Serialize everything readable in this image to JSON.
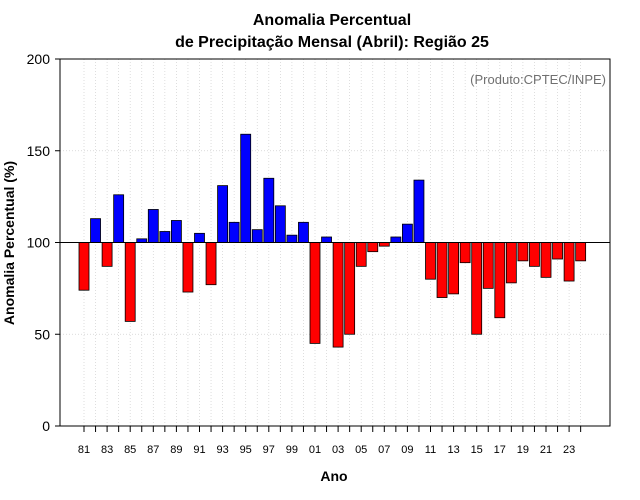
{
  "chart_data": {
    "type": "bar",
    "title": [
      "Anomalia Percentual",
      "de Precipitação Mensal (Abril): Região 25"
    ],
    "xlabel": "Ano",
    "ylabel": "Anomalia Percentual (%)",
    "credit": "(Produto:CPTEC/INPE)",
    "baseline": 100,
    "ylim": [
      0,
      200
    ],
    "yticks": [
      0,
      50,
      100,
      150,
      200
    ],
    "grid": true,
    "colors": {
      "above": "#0000ff",
      "below": "#ff0000"
    },
    "categories": [
      "81",
      "82",
      "83",
      "84",
      "85",
      "86",
      "87",
      "88",
      "89",
      "90",
      "91",
      "92",
      "93",
      "94",
      "95",
      "96",
      "97",
      "98",
      "99",
      "00",
      "01",
      "02",
      "03",
      "04",
      "05",
      "06",
      "07",
      "08",
      "09",
      "10",
      "11",
      "12",
      "13",
      "14",
      "15",
      "16",
      "17",
      "18",
      "19",
      "20",
      "21",
      "22",
      "23",
      "24"
    ],
    "xticklabels": [
      "81",
      "83",
      "85",
      "87",
      "89",
      "91",
      "93",
      "95",
      "97",
      "99",
      "01",
      "03",
      "05",
      "07",
      "09",
      "11",
      "13",
      "15",
      "17",
      "19",
      "21",
      "23"
    ],
    "values": [
      74,
      113,
      87,
      126,
      57,
      102,
      118,
      106,
      112,
      73,
      105,
      77,
      131,
      111,
      159,
      107,
      135,
      120,
      104,
      111,
      45,
      103,
      43,
      50,
      87,
      95,
      98,
      103,
      110,
      134,
      80,
      70,
      72,
      89,
      50,
      75,
      59,
      78,
      90,
      87,
      81,
      91,
      79,
      90
    ]
  }
}
